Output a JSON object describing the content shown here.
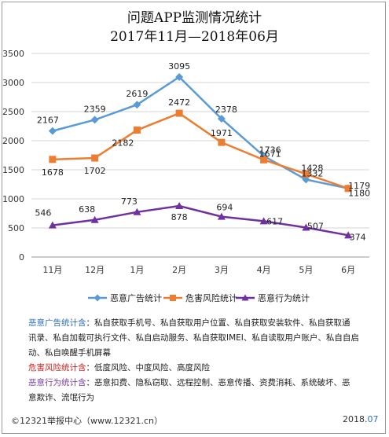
{
  "header": {
    "title_line1": "问题APP监测情况统计",
    "title_line2": "2017年11月—2018年06月"
  },
  "chart_data": {
    "type": "line",
    "categories": [
      "11月",
      "12月",
      "1月",
      "2月",
      "3月",
      "4月",
      "5月",
      "6月"
    ],
    "ylim": [
      0,
      3500
    ],
    "yticks": [
      "0",
      "500",
      "1000",
      "1500",
      "2000",
      "2500",
      "3000",
      "3500"
    ],
    "grid": true,
    "legend_position": "bottom",
    "series": [
      {
        "name": "恶意广告统计",
        "color": "#5b9bd5",
        "marker": "diamond",
        "values": [
          2167,
          2359,
          2619,
          3095,
          2378,
          1736,
          1332,
          1180
        ]
      },
      {
        "name": "危害风险统计",
        "color": "#ed7d31",
        "marker": "square",
        "values": [
          1678,
          1702,
          2182,
          2472,
          1971,
          1671,
          1428,
          1179
        ]
      },
      {
        "name": "恶意行为统计",
        "color": "#7030a0",
        "marker": "triangle",
        "values": [
          546,
          638,
          773,
          878,
          694,
          617,
          507,
          374
        ]
      }
    ],
    "data_labels": [
      [
        "2167",
        "2359",
        "2619",
        "3095",
        "2378",
        "1736",
        "1332",
        "1180"
      ],
      [
        "1678",
        "1702",
        "2182",
        "2472",
        "1971",
        "1671",
        "1428",
        "1179"
      ],
      [
        "546",
        "638",
        "773",
        "878",
        "694",
        "617",
        "507",
        "374"
      ]
    ]
  },
  "description": {
    "line1_key": "恶意广告统计含",
    "line1_text": "：私自获取手机号、私自获取用户位置、私自获取安装软件、私自获取通",
    "line2_text": "讯录、私自加载可执行文件、私自启动服务、私自获取IMEI、私自读取用户账户、私自自启",
    "line3_text": "动、私自唤醒手机屏幕",
    "line4_key": "危害风险统计含",
    "line4_text": "：低度风险、中度风险、高度风险",
    "line5_key": "恶意行为统计含",
    "line5_text": "：恶意扣费、隐私窃取、远程控制、恶意传播、资费消耗、系统破坏、恶",
    "line6_text": "意欺诈、流氓行为"
  },
  "footer": {
    "source": "©12321举报中心（www.12321.cn）",
    "date_prefix": "2018.",
    "date_suffix": "07"
  }
}
